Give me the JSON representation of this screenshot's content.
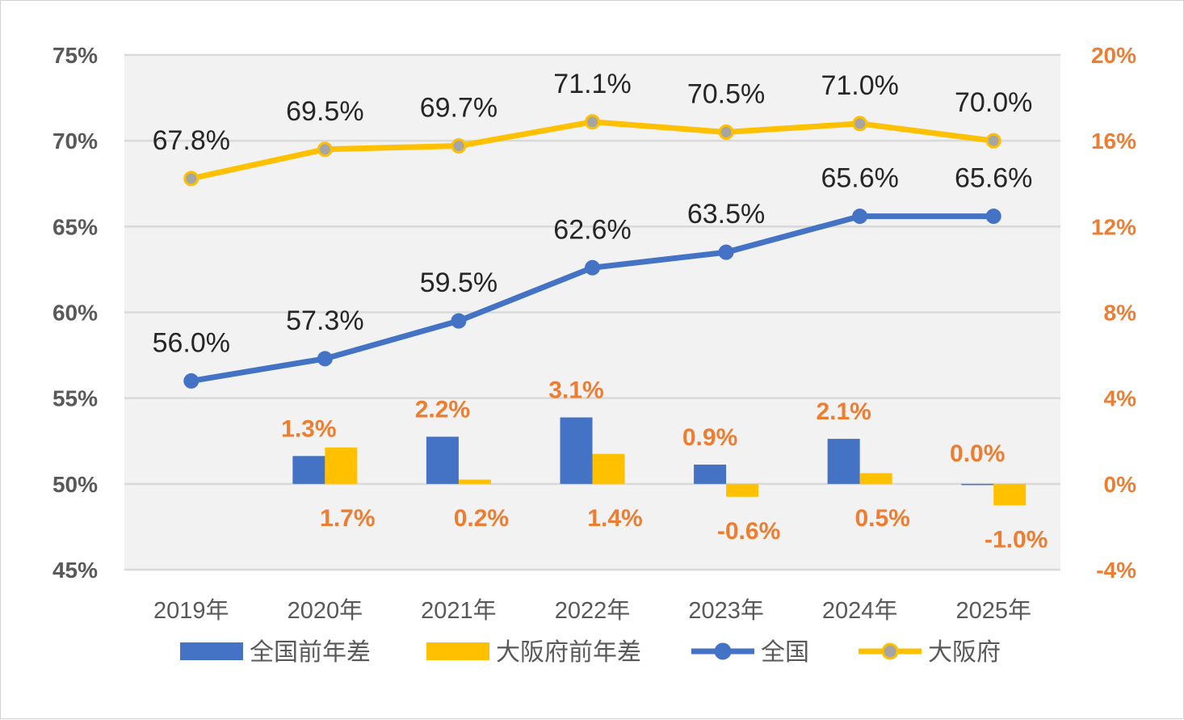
{
  "chart_data": {
    "type": "bar",
    "categories": [
      "2019年",
      "2020年",
      "2021年",
      "2022年",
      "2023年",
      "2024年",
      "2025年"
    ],
    "left_axis": {
      "range": [
        45,
        75
      ],
      "ticks": [
        45,
        50,
        55,
        60,
        65,
        70,
        75
      ],
      "tick_labels": [
        "45%",
        "50%",
        "55%",
        "60%",
        "65%",
        "70%",
        "75%"
      ]
    },
    "right_axis": {
      "range": [
        -4,
        20
      ],
      "ticks": [
        -4,
        0,
        4,
        8,
        12,
        16,
        20
      ],
      "tick_labels": [
        "-4%",
        "0%",
        "4%",
        "8%",
        "12%",
        "16%",
        "20%"
      ]
    },
    "grid": true,
    "legend_position": "bottom",
    "series": [
      {
        "name": "全国前年差",
        "type": "bar",
        "axis": "right",
        "color": "#4472C4",
        "values": [
          null,
          1.3,
          2.2,
          3.1,
          0.9,
          2.1,
          0.0
        ],
        "labels": [
          "",
          "1.3%",
          "2.2%",
          "3.1%",
          "0.9%",
          "2.1%",
          "0.0%"
        ]
      },
      {
        "name": "大阪府前年差",
        "type": "bar",
        "axis": "right",
        "color": "#FFC000",
        "values": [
          null,
          1.7,
          0.2,
          1.4,
          -0.6,
          0.5,
          -1.0
        ],
        "labels": [
          "",
          "1.7%",
          "0.2%",
          "1.4%",
          "-0.6%",
          "0.5%",
          "-1.0%"
        ]
      },
      {
        "name": "全国",
        "type": "line",
        "axis": "left",
        "color": "#4472C4",
        "values": [
          56.0,
          57.3,
          59.5,
          62.6,
          63.5,
          65.6,
          65.6
        ],
        "labels": [
          "56.0%",
          "57.3%",
          "59.5%",
          "62.6%",
          "63.5%",
          "65.6%",
          "65.6%"
        ]
      },
      {
        "name": "大阪府",
        "type": "line",
        "axis": "left",
        "color": "#FFC000",
        "marker_color": "#A5A5A5",
        "values": [
          67.8,
          69.5,
          69.7,
          71.1,
          70.5,
          71.0,
          70.0
        ],
        "labels": [
          "67.8%",
          "69.5%",
          "69.7%",
          "71.1%",
          "70.5%",
          "71.0%",
          "70.0%"
        ]
      }
    ]
  }
}
